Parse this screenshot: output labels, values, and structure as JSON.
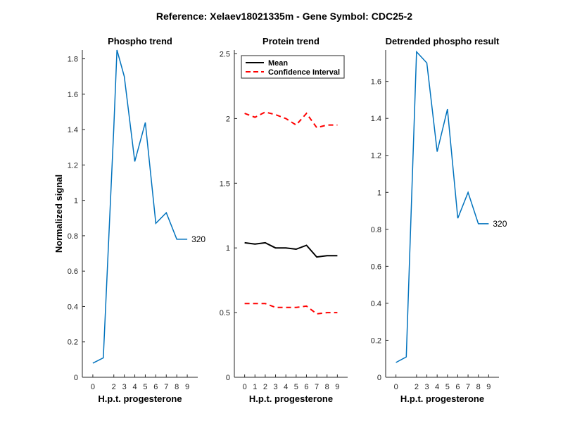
{
  "figure": {
    "suptitle": "Reference:  Xelaev18021335m - Gene Symbol:  CDC25-2"
  },
  "chart_data": [
    {
      "type": "line",
      "title": "Phospho trend",
      "xlabel": "H.p.t. progesterone",
      "ylabel": "Normalized signal",
      "xlim": [
        -1,
        10
      ],
      "ylim": [
        0,
        1.85
      ],
      "xticks": [
        0,
        2,
        3,
        4,
        5,
        6,
        7,
        8,
        9
      ],
      "yticks": [
        0,
        0.2,
        0.4,
        0.6,
        0.8,
        1,
        1.2,
        1.4,
        1.6,
        1.8
      ],
      "series": [
        {
          "color": "#0072BD",
          "x": [
            0,
            1,
            2,
            2.3,
            3,
            4,
            5,
            6,
            7,
            8,
            9
          ],
          "y": [
            0.08,
            0.11,
            1.41,
            1.85,
            1.7,
            1.22,
            1.44,
            0.87,
            0.93,
            0.78,
            0.78
          ],
          "style": "solid"
        }
      ],
      "annotations": [
        {
          "text": "320",
          "x": 9,
          "y": 0.78
        }
      ]
    },
    {
      "type": "line",
      "title": "Protein trend",
      "xlabel": "H.p.t. progesterone",
      "ylabel": "",
      "xlim": [
        -1,
        10
      ],
      "ylim": [
        0,
        2.53
      ],
      "xticks": [
        0,
        1,
        2,
        3,
        4,
        5,
        6,
        7,
        8,
        9
      ],
      "yticks": [
        0,
        0.5,
        1,
        1.5,
        2,
        2.5
      ],
      "legend": {
        "position": "top-left",
        "entries": [
          "Mean",
          "Confidence Interval"
        ]
      },
      "series": [
        {
          "name": "Mean",
          "color": "#000000",
          "style": "solid",
          "x": [
            0,
            1,
            2,
            3,
            4,
            5,
            6,
            7,
            8,
            9
          ],
          "y": [
            1.04,
            1.03,
            1.04,
            1.0,
            1.0,
            0.99,
            1.02,
            0.93,
            0.94,
            0.94
          ]
        },
        {
          "name": "Confidence Interval",
          "color": "#FF0000",
          "style": "dashed",
          "x": [
            0,
            1,
            2,
            3,
            4,
            5,
            6,
            7,
            8,
            9
          ],
          "y": [
            2.04,
            2.01,
            2.05,
            2.03,
            2.0,
            1.95,
            2.04,
            1.93,
            1.95,
            1.95
          ]
        },
        {
          "color": "#FF0000",
          "style": "dashed",
          "x": [
            0,
            1,
            2,
            3,
            4,
            5,
            6,
            7,
            8,
            9
          ],
          "y": [
            0.57,
            0.57,
            0.57,
            0.54,
            0.54,
            0.54,
            0.55,
            0.49,
            0.5,
            0.5
          ]
        }
      ]
    },
    {
      "type": "line",
      "title": "Detrended phospho result",
      "xlabel": "H.p.t. progesterone",
      "ylabel": "",
      "xlim": [
        -1,
        10
      ],
      "ylim": [
        0,
        1.77
      ],
      "xticks": [
        0,
        2,
        3,
        4,
        5,
        6,
        7,
        8,
        9
      ],
      "yticks": [
        0,
        0.2,
        0.4,
        0.6,
        0.8,
        1,
        1.2,
        1.4,
        1.6
      ],
      "series": [
        {
          "color": "#0072BD",
          "style": "solid",
          "x": [
            0,
            1,
            2,
            3,
            4,
            5,
            6,
            7,
            8,
            9
          ],
          "y": [
            0.08,
            0.11,
            1.76,
            1.7,
            1.22,
            1.45,
            0.86,
            1.0,
            0.83,
            0.83
          ]
        }
      ],
      "annotations": [
        {
          "text": "320",
          "x": 9,
          "y": 0.83
        }
      ]
    }
  ]
}
